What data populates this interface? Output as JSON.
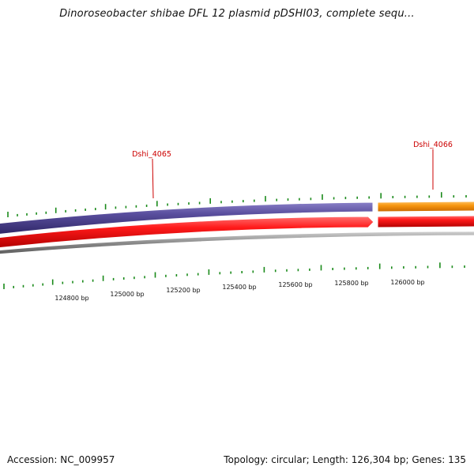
{
  "title": "Dinoroseobacter shibae DFL 12 plasmid pDSHI03, complete sequ...",
  "accession": "Accession: NC_009957",
  "summary": "Topology: circular; Length: 126,304 bp; Genes: 135",
  "gene_labels": [
    {
      "name": "Dshi_4065"
    },
    {
      "name": "Dshi_4066"
    }
  ],
  "scale_labels": [
    "124800 bp",
    "125000 bp",
    "125200 bp",
    "125400 bp",
    "125600 bp",
    "125800 bp",
    "126000 bp"
  ],
  "colors": {
    "forward_gene": "#4a3f8c",
    "forward_gene_2": "#f0900a",
    "reverse_gene": "#ee1c1c",
    "backbone": "#808080",
    "tick": "#1a8a1a",
    "label": "#cc0000"
  }
}
